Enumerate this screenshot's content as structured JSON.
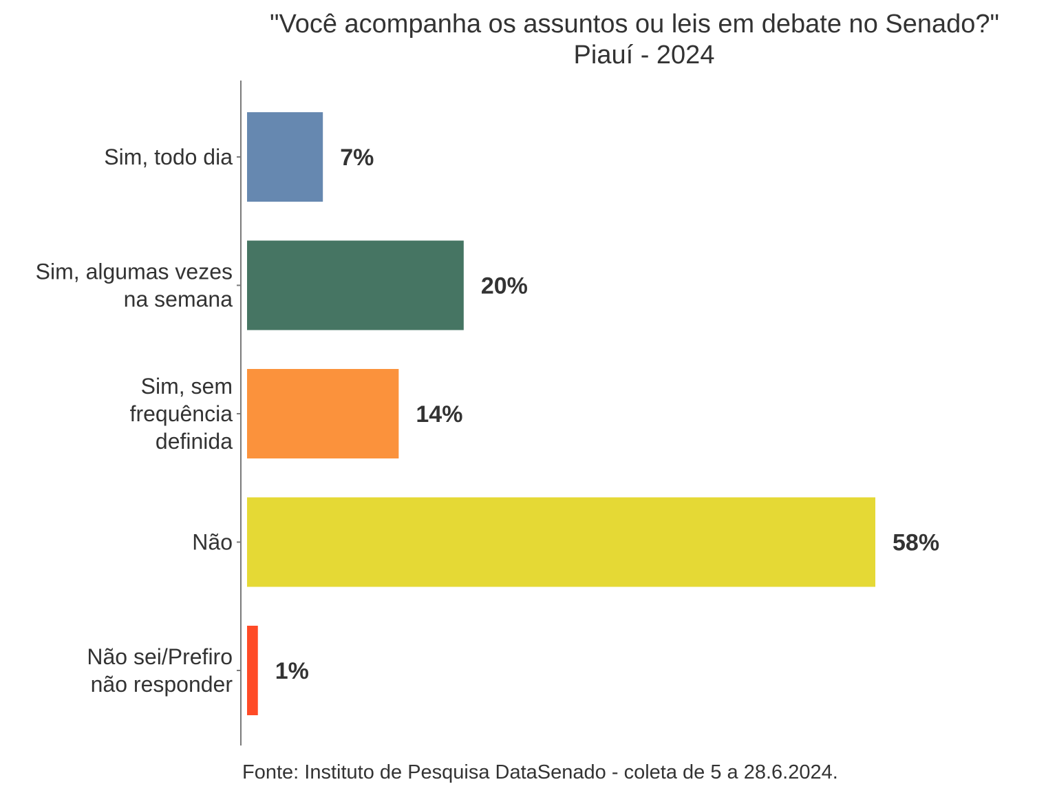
{
  "chart_data": {
    "type": "bar",
    "orientation": "horizontal",
    "title": "\"Você acompanha os assuntos ou leis em debate no Senado?\"",
    "subtitle": "Piauí - 2024",
    "caption": "Fonte: Instituto de Pesquisa DataSenado - coleta de 5 a 28.6.2024.",
    "categories": [
      [
        "Sim, todo dia"
      ],
      [
        "Sim, algumas vezes",
        "na semana"
      ],
      [
        "Sim, sem",
        "frequência",
        "definida"
      ],
      [
        "Não"
      ],
      [
        "Não sei/Prefiro",
        "não responder"
      ]
    ],
    "values": [
      7,
      20,
      14,
      58,
      1
    ],
    "value_labels": [
      "7%",
      "20%",
      "14%",
      "58%",
      "1%"
    ],
    "colors": [
      "#6688b0",
      "#467563",
      "#fb923c",
      "#e5d935",
      "#ff4a26"
    ],
    "xlim": [
      0,
      58
    ],
    "grid": false,
    "legend": "none"
  }
}
